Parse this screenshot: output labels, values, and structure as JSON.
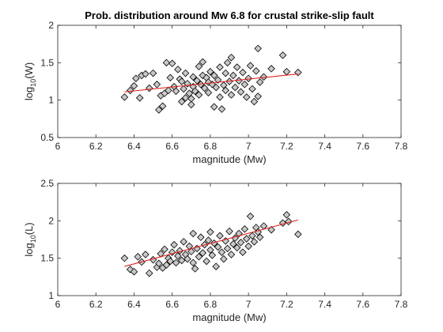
{
  "figure": {
    "title": "Prob. distribution around Mw 6.8 for crustal strike-slip fault",
    "marker_color": "#c8c8c8",
    "fit_color": "#e0201a"
  },
  "chart_data": [
    {
      "type": "scatter",
      "title": "Prob. distribution around Mw 6.8 for crustal strike-slip fault",
      "xlabel": "magnitude (Mw)",
      "ylabel_base": "log",
      "ylabel_sub": "10",
      "ylabel_var": "(W)",
      "xlim": [
        6,
        7.8
      ],
      "ylim": [
        0.5,
        2
      ],
      "xticks": [
        6,
        6.2,
        6.4,
        6.6,
        6.8,
        7,
        7.2,
        7.4,
        7.6,
        7.8
      ],
      "xtick_labels": [
        "6",
        "6.2",
        "6.4",
        "6.6",
        "6.8",
        "7",
        "7.2",
        "7.4",
        "7.6",
        "7.8"
      ],
      "yticks": [
        0.5,
        1,
        1.5,
        2
      ],
      "ytick_labels": [
        "0.5",
        "1",
        "1.5",
        "2"
      ],
      "grid": false,
      "points": [
        [
          6.35,
          1.04
        ],
        [
          6.38,
          1.13
        ],
        [
          6.4,
          1.19
        ],
        [
          6.41,
          1.29
        ],
        [
          6.43,
          1.03
        ],
        [
          6.44,
          1.33
        ],
        [
          6.46,
          1.35
        ],
        [
          6.48,
          1.16
        ],
        [
          6.5,
          1.36
        ],
        [
          6.52,
          1.21
        ],
        [
          6.53,
          0.87
        ],
        [
          6.54,
          1.06
        ],
        [
          6.55,
          0.92
        ],
        [
          6.56,
          1.09
        ],
        [
          6.57,
          1.5
        ],
        [
          6.58,
          1.13
        ],
        [
          6.59,
          1.3
        ],
        [
          6.6,
          1.49
        ],
        [
          6.61,
          1.18
        ],
        [
          6.62,
          1.12
        ],
        [
          6.63,
          1.41
        ],
        [
          6.64,
          1.28
        ],
        [
          6.65,
          0.98
        ],
        [
          6.65,
          1.25
        ],
        [
          6.66,
          1.15
        ],
        [
          6.67,
          1.03
        ],
        [
          6.67,
          1.36
        ],
        [
          6.68,
          1.22
        ],
        [
          6.69,
          1.09
        ],
        [
          6.7,
          0.94
        ],
        [
          6.7,
          1.02
        ],
        [
          6.71,
          1.18
        ],
        [
          6.71,
          1.31
        ],
        [
          6.72,
          1.12
        ],
        [
          6.73,
          1.26
        ],
        [
          6.74,
          1.45
        ],
        [
          6.74,
          1.07
        ],
        [
          6.75,
          1.21
        ],
        [
          6.76,
          1.33
        ],
        [
          6.76,
          1.51
        ],
        [
          6.77,
          1.16
        ],
        [
          6.78,
          1.3
        ],
        [
          6.79,
          1.1
        ],
        [
          6.79,
          1.24
        ],
        [
          6.8,
          1.38
        ],
        [
          6.81,
          1.21
        ],
        [
          6.82,
          0.91
        ],
        [
          6.82,
          1.33
        ],
        [
          6.83,
          1.17
        ],
        [
          6.84,
          1.27
        ],
        [
          6.85,
          1.04
        ],
        [
          6.85,
          1.44
        ],
        [
          6.86,
          0.88
        ],
        [
          6.87,
          1.2
        ],
        [
          6.88,
          1.13
        ],
        [
          6.88,
          1.36
        ],
        [
          6.89,
          1.5
        ],
        [
          6.9,
          1.25
        ],
        [
          6.91,
          1.07
        ],
        [
          6.91,
          1.57
        ],
        [
          6.92,
          1.33
        ],
        [
          6.93,
          1.17
        ],
        [
          6.94,
          1.44
        ],
        [
          6.95,
          1.26
        ],
        [
          6.96,
          1.11
        ],
        [
          6.97,
          1.37
        ],
        [
          6.98,
          1.21
        ],
        [
          6.99,
          1.04
        ],
        [
          7.0,
          1.29
        ],
        [
          7.01,
          1.46
        ],
        [
          7.02,
          1.15
        ],
        [
          7.03,
          0.98
        ],
        [
          7.04,
          1.39
        ],
        [
          7.05,
          1.05
        ],
        [
          7.05,
          1.69
        ],
        [
          7.06,
          1.24
        ],
        [
          7.08,
          1.31
        ],
        [
          7.12,
          1.42
        ],
        [
          7.18,
          1.6
        ],
        [
          7.2,
          1.38
        ],
        [
          7.26,
          1.37
        ]
      ],
      "fit": [
        [
          6.35,
          1.11
        ],
        [
          7.26,
          1.35
        ]
      ]
    },
    {
      "type": "scatter",
      "xlabel": "magnitude (Mw)",
      "ylabel_base": "log",
      "ylabel_sub": "10",
      "ylabel_var": "(L)",
      "xlim": [
        6,
        7.8
      ],
      "ylim": [
        1,
        2.5
      ],
      "xticks": [
        6,
        6.2,
        6.4,
        6.6,
        6.8,
        7,
        7.2,
        7.4,
        7.6,
        7.8
      ],
      "xtick_labels": [
        "6",
        "6.2",
        "6.4",
        "6.6",
        "6.8",
        "7",
        "7.2",
        "7.4",
        "7.6",
        "7.8"
      ],
      "yticks": [
        1,
        1.5,
        2,
        2.5
      ],
      "ytick_labels": [
        "1",
        "1.5",
        "2",
        "2.5"
      ],
      "grid": false,
      "points": [
        [
          6.35,
          1.5
        ],
        [
          6.38,
          1.35
        ],
        [
          6.4,
          1.32
        ],
        [
          6.42,
          1.52
        ],
        [
          6.44,
          1.45
        ],
        [
          6.46,
          1.55
        ],
        [
          6.48,
          1.3
        ],
        [
          6.5,
          1.48
        ],
        [
          6.52,
          1.38
        ],
        [
          6.53,
          1.43
        ],
        [
          6.54,
          1.56
        ],
        [
          6.55,
          1.37
        ],
        [
          6.56,
          1.62
        ],
        [
          6.57,
          1.41
        ],
        [
          6.58,
          1.5
        ],
        [
          6.59,
          1.46
        ],
        [
          6.6,
          1.58
        ],
        [
          6.61,
          1.68
        ],
        [
          6.62,
          1.44
        ],
        [
          6.63,
          1.53
        ],
        [
          6.64,
          1.6
        ],
        [
          6.65,
          1.47
        ],
        [
          6.66,
          1.72
        ],
        [
          6.67,
          1.55
        ],
        [
          6.68,
          1.49
        ],
        [
          6.69,
          1.66
        ],
        [
          6.7,
          1.59
        ],
        [
          6.71,
          1.83
        ],
        [
          6.71,
          1.44
        ],
        [
          6.72,
          1.36
        ],
        [
          6.73,
          1.63
        ],
        [
          6.74,
          1.52
        ],
        [
          6.75,
          1.78
        ],
        [
          6.76,
          1.57
        ],
        [
          6.77,
          1.68
        ],
        [
          6.78,
          1.46
        ],
        [
          6.79,
          1.74
        ],
        [
          6.8,
          1.61
        ],
        [
          6.8,
          1.85
        ],
        [
          6.81,
          1.54
        ],
        [
          6.82,
          1.7
        ],
        [
          6.83,
          1.39
        ],
        [
          6.84,
          1.65
        ],
        [
          6.85,
          1.8
        ],
        [
          6.86,
          1.58
        ],
        [
          6.87,
          1.49
        ],
        [
          6.88,
          1.73
        ],
        [
          6.89,
          1.63
        ],
        [
          6.9,
          1.86
        ],
        [
          6.91,
          1.55
        ],
        [
          6.92,
          1.69
        ],
        [
          6.93,
          1.77
        ],
        [
          6.94,
          1.64
        ],
        [
          6.95,
          1.83
        ],
        [
          6.96,
          1.71
        ],
        [
          6.97,
          1.58
        ],
        [
          6.98,
          1.89
        ],
        [
          6.99,
          1.76
        ],
        [
          7.0,
          1.66
        ],
        [
          7.01,
          2.06
        ],
        [
          7.02,
          1.8
        ],
        [
          7.03,
          1.72
        ],
        [
          7.04,
          1.91
        ],
        [
          7.05,
          1.85
        ],
        [
          7.06,
          1.78
        ],
        [
          7.08,
          1.93
        ],
        [
          7.12,
          1.88
        ],
        [
          7.18,
          1.97
        ],
        [
          7.2,
          2.08
        ],
        [
          7.21,
          1.99
        ],
        [
          7.26,
          1.82
        ]
      ],
      "fit": [
        [
          6.35,
          1.39
        ],
        [
          7.26,
          2.01
        ]
      ]
    }
  ]
}
